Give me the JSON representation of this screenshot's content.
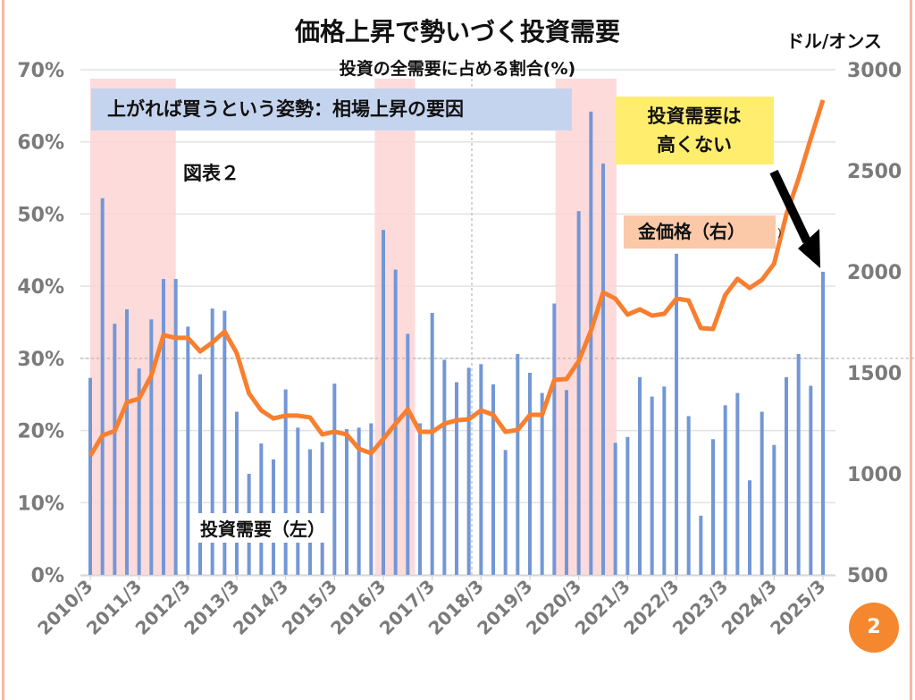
{
  "chart_data": {
    "type": "bar+line",
    "title": "価格上昇で勢いづく投資需要",
    "subtitle": "投資の全需要に占める割合(%)",
    "y_left": {
      "min": 0,
      "max": 70,
      "step": 10,
      "ticks": [
        "0%",
        "10%",
        "20%",
        "30%",
        "40%",
        "50%",
        "60%",
        "70%"
      ]
    },
    "y_right": {
      "min": 500,
      "max": 3000,
      "step": 500,
      "unit": "ドル/オンス",
      "ticks": [
        "500",
        "1000",
        "1500",
        "2000",
        "2500",
        "3000"
      ]
    },
    "x_tick_labels": [
      "2010/3",
      "2011/3",
      "2012/3",
      "2013/3",
      "2014/3",
      "2015/3",
      "2016/3",
      "2017/3",
      "2018/3",
      "2019/3",
      "2020/3",
      "2021/3",
      "2022/3",
      "2023/3",
      "2024/3",
      "2025/3"
    ],
    "x_tick_every": 4,
    "series": [
      {
        "name": "投資需要（左）",
        "type": "bar",
        "axis": "left",
        "color": "#7397d6",
        "values": [
          27.3,
          52.2,
          34.8,
          36.8,
          28.6,
          35.4,
          41.0,
          41.0,
          34.4,
          27.8,
          36.9,
          36.6,
          22.6,
          14.0,
          18.2,
          16.0,
          25.7,
          20.4,
          17.4,
          18.4,
          26.5,
          20.2,
          20.4,
          21.0,
          47.8,
          42.3,
          33.4,
          21.0,
          36.3,
          29.8,
          26.7,
          28.7,
          29.2,
          26.4,
          17.3,
          30.6,
          28.0,
          25.2,
          37.6,
          25.6,
          50.4,
          64.2,
          57.0,
          18.3,
          19.1,
          27.4,
          24.7,
          26.1,
          44.5,
          22.0,
          8.2,
          18.8,
          23.5,
          25.2,
          13.1,
          22.6,
          18.0,
          27.4,
          30.6,
          26.2,
          42.0
        ]
      },
      {
        "name": "金価格（右）",
        "type": "line",
        "axis": "right",
        "color": "#f77f2f",
        "values": [
          1089,
          1190,
          1212,
          1354,
          1372,
          1487,
          1686,
          1673,
          1673,
          1606,
          1650,
          1704,
          1597,
          1398,
          1314,
          1274,
          1288,
          1288,
          1279,
          1195,
          1208,
          1195,
          1124,
          1102,
          1173,
          1248,
          1319,
          1208,
          1208,
          1248,
          1265,
          1270,
          1314,
          1292,
          1208,
          1217,
          1292,
          1292,
          1465,
          1469,
          1558,
          1708,
          1898,
          1867,
          1788,
          1814,
          1783,
          1792,
          1867,
          1858,
          1721,
          1717,
          1885,
          1965,
          1920,
          1960,
          2040,
          2283,
          2460,
          2659,
          2850
        ]
      }
    ],
    "highlight_periods": [
      [
        0,
        7
      ],
      [
        23.3,
        26.3
      ],
      [
        38.1,
        42.8
      ]
    ],
    "highlight_color": "#fdd5d5",
    "reference_line_left": 30
  },
  "annotations": {
    "blue_box": "上がれば買うという姿勢：相場上昇の要因",
    "figure_label": "図表２",
    "yellow_box": "投資需要は\n高くない",
    "gold_label": "金価格（右）",
    "stray_mark": "）",
    "investment_label": "投資需要（左）",
    "page_badge": "2"
  }
}
